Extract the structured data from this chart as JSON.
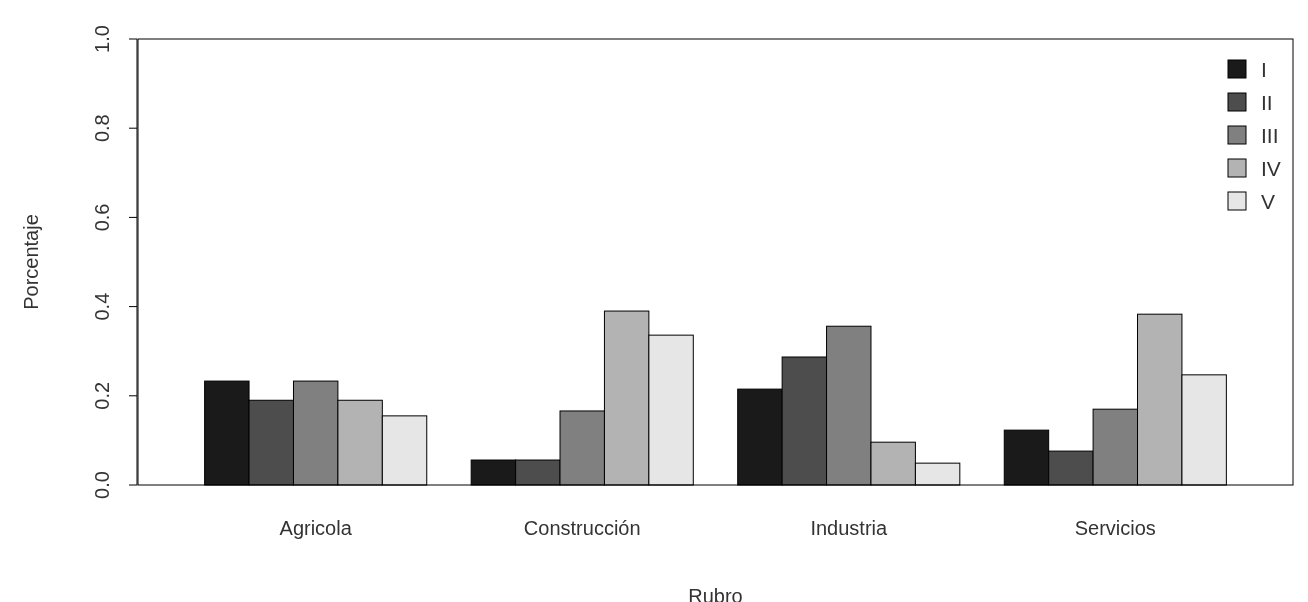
{
  "chart_data": {
    "type": "bar",
    "xlabel": "Rubro",
    "ylabel": "Porcentaje",
    "categories": [
      "Agricola",
      "Construcción",
      "Industria",
      "Servicios"
    ],
    "series": [
      {
        "name": "I",
        "color": "#1a1a1a",
        "values": [
          0.233,
          0.056,
          0.215,
          0.123
        ]
      },
      {
        "name": "II",
        "color": "#4d4d4d",
        "values": [
          0.19,
          0.056,
          0.287,
          0.076
        ]
      },
      {
        "name": "III",
        "color": "#808080",
        "values": [
          0.233,
          0.166,
          0.356,
          0.17
        ]
      },
      {
        "name": "IV",
        "color": "#b3b3b3",
        "values": [
          0.19,
          0.39,
          0.096,
          0.383
        ]
      },
      {
        "name": "V",
        "color": "#e6e6e6",
        "values": [
          0.155,
          0.336,
          0.049,
          0.247
        ]
      }
    ],
    "ylim": [
      0,
      1
    ],
    "yticks": [
      {
        "value": 0,
        "label": "0.0"
      },
      {
        "value": 0.2,
        "label": "0.2"
      },
      {
        "value": 0.4,
        "label": "0.4"
      },
      {
        "value": 0.6,
        "label": "0.6"
      },
      {
        "value": 0.8,
        "label": "0.8"
      },
      {
        "value": 1,
        "label": "1.0"
      }
    ],
    "legend": "top right",
    "grid": false
  }
}
